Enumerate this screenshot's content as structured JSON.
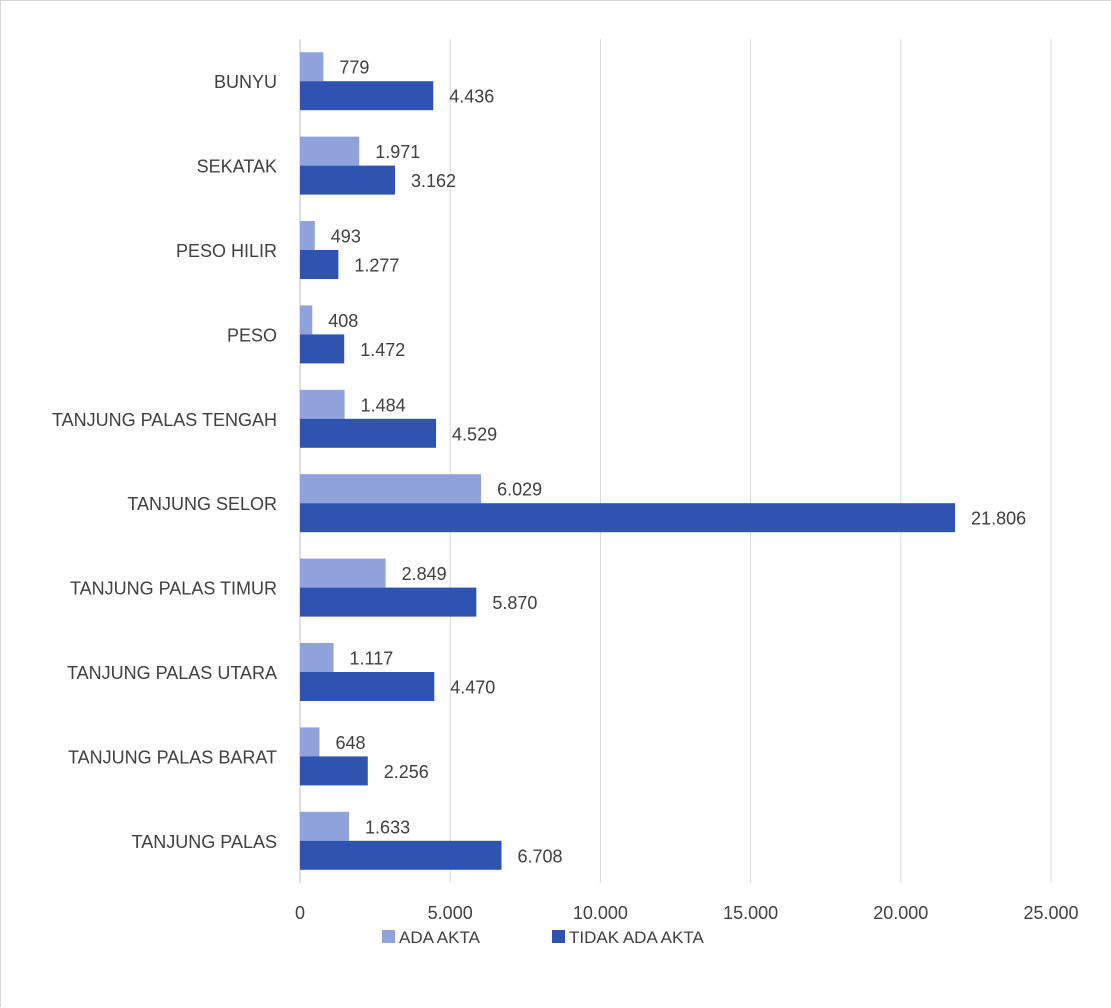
{
  "chart_data": {
    "type": "bar",
    "orientation": "horizontal",
    "categories": [
      "BUNYU",
      "SEKATAK",
      "PESO HILIR",
      "PESO",
      "TANJUNG PALAS TENGAH",
      "TANJUNG SELOR",
      "TANJUNG PALAS TIMUR",
      "TANJUNG PALAS UTARA",
      "TANJUNG PALAS BARAT",
      "TANJUNG PALAS"
    ],
    "series": [
      {
        "name": "ADA AKTA",
        "color": "#8fa2dc",
        "values": [
          779,
          1971,
          493,
          408,
          1484,
          6029,
          2849,
          1117,
          648,
          1633
        ],
        "labels": [
          "779",
          "1.971",
          "493",
          "408",
          "1.484",
          "6.029",
          "2.849",
          "1.117",
          "648",
          "1.633"
        ]
      },
      {
        "name": "TIDAK ADA AKTA",
        "color": "#2e54b0",
        "values": [
          4436,
          3162,
          1277,
          1472,
          4529,
          21806,
          5870,
          4470,
          2256,
          6708
        ],
        "labels": [
          "4.436",
          "3.162",
          "1.277",
          "1.472",
          "4.529",
          "21.806",
          "5.870",
          "4.470",
          "2.256",
          "6.708"
        ]
      }
    ],
    "xlim": [
      0,
      25000
    ],
    "ticks": [
      0,
      5000,
      10000,
      15000,
      20000,
      25000
    ],
    "tick_labels": [
      "0",
      "5.000",
      "10.000",
      "15.000",
      "20.000",
      "25.000"
    ],
    "grid": true,
    "legend_position": "bottom"
  }
}
